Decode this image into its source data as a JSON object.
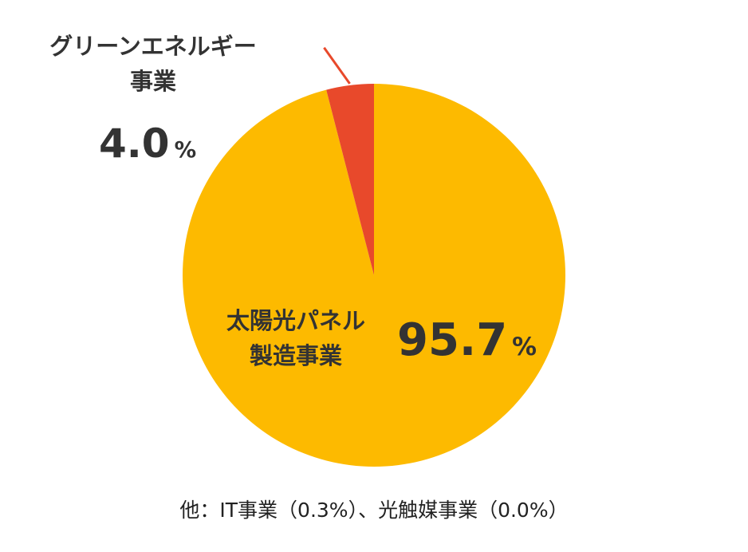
{
  "chart_data": {
    "type": "pie",
    "slices": [
      {
        "name_line1": "太陽光パネル",
        "name_line2": "製造事業",
        "value": 95.7,
        "value_text": "95.7",
        "unit": "%",
        "color": "#FDBA00"
      },
      {
        "name_line1": "グリーンエネルギー",
        "name_line2": "事業",
        "value": 4.0,
        "value_text": "4.0",
        "unit": "%",
        "color": "#E8492B"
      }
    ],
    "start_angle_deg": 0,
    "direction": "clockwise",
    "leader_line_color": "#E8492B",
    "footnote": "他：IT事業（0.3%）、光触媒事業（0.0%）"
  }
}
